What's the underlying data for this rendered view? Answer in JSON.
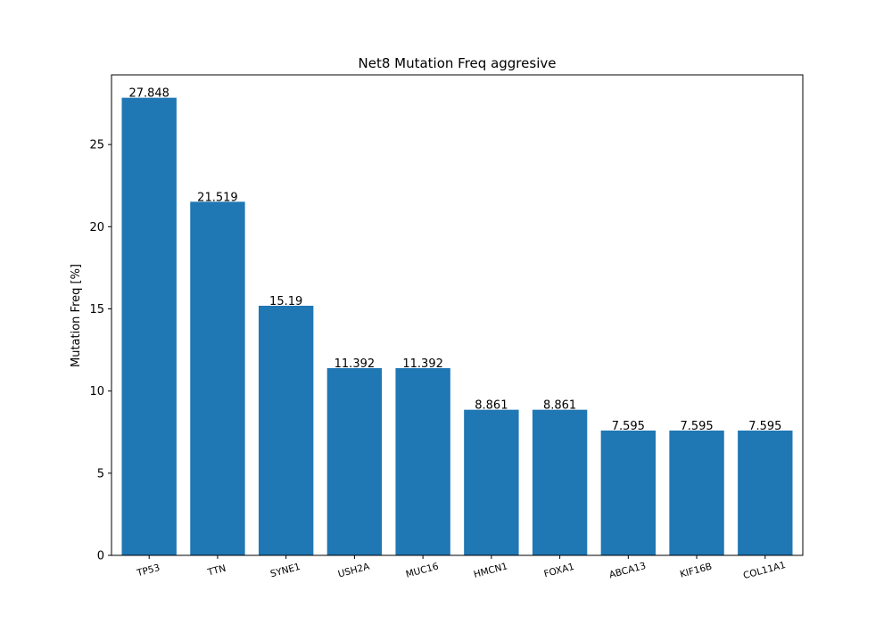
{
  "chart_data": {
    "type": "bar",
    "title": "Net8 Mutation Freq aggresive",
    "xlabel": "",
    "ylabel": "Mutation Freq [%]",
    "categories": [
      "TP53",
      "TTN",
      "SYNE1",
      "USH2A",
      "MUC16",
      "HMCN1",
      "FOXA1",
      "ABCA13",
      "KIF16B",
      "COL11A1"
    ],
    "values": [
      27.848,
      21.519,
      15.19,
      11.392,
      11.392,
      8.861,
      8.861,
      7.595,
      7.595,
      7.595
    ],
    "value_labels": [
      "27.848",
      "21.519",
      "15.19",
      "11.392",
      "11.392",
      "8.861",
      "8.861",
      "7.595",
      "7.595",
      "7.595"
    ],
    "ylim": [
      0,
      29.24
    ],
    "yticks": [
      0,
      5,
      10,
      15,
      20,
      25
    ],
    "bar_color": "#1f77b4",
    "grid": false,
    "legend": "none"
  }
}
